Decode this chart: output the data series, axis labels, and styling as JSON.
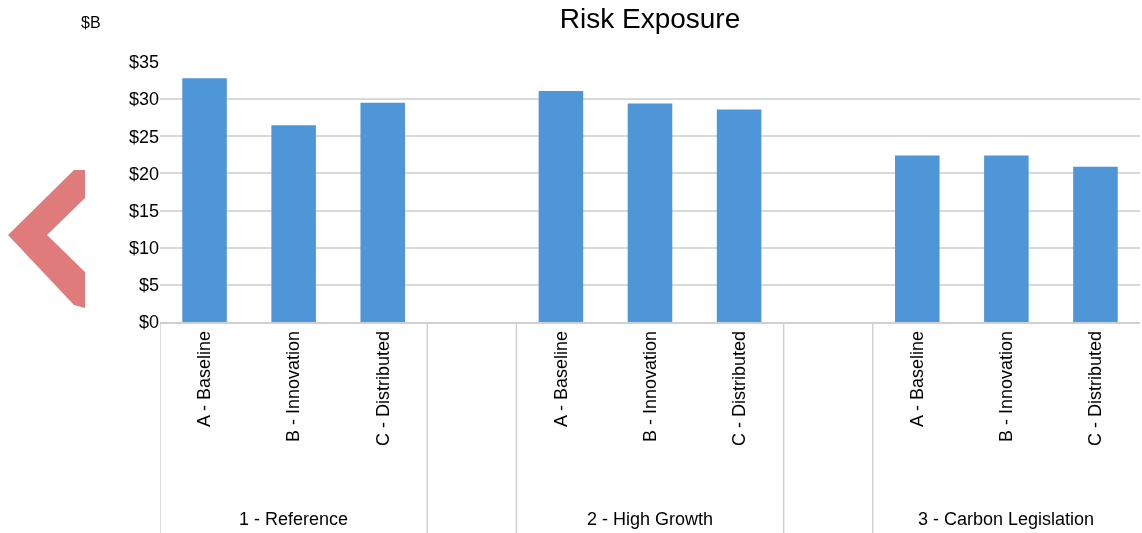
{
  "chart_data": {
    "type": "bar",
    "title": "Risk Exposure",
    "ylabel": "$B",
    "categories": [
      "A - Baseline",
      "B - Innovation",
      "C - Distributed",
      null,
      "A - Baseline",
      "B - Innovation",
      "C - Distributed",
      null,
      "A - Baseline",
      "B - Innovation",
      "C - Distributed"
    ],
    "values": [
      32.8,
      26.5,
      29.5,
      null,
      31.1,
      29.4,
      28.6,
      null,
      22.4,
      22.4,
      20.9
    ],
    "color": "#4f96d9",
    "ylim": [
      0,
      35
    ],
    "yticks": [
      {
        "value": 0,
        "label": "$0"
      },
      {
        "value": 5,
        "label": "$5"
      },
      {
        "value": 10,
        "label": "$10"
      },
      {
        "value": 15,
        "label": "$15"
      },
      {
        "value": 20,
        "label": "$20"
      },
      {
        "value": 25,
        "label": "$25"
      },
      {
        "value": 30,
        "label": "$30"
      },
      {
        "value": 35,
        "label": "$35"
      }
    ],
    "grid": "y",
    "annotations": [
      "1 - Reference",
      "2 - High Growth",
      "3 - Carbon Legislation"
    ]
  }
}
